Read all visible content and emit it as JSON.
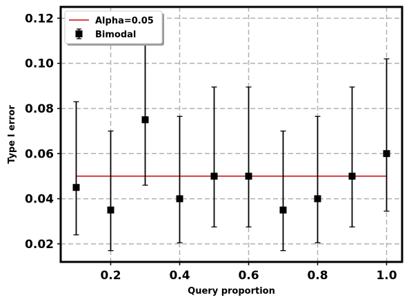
{
  "chart_data": {
    "type": "scatter",
    "title": "",
    "xlabel": "Query proportion",
    "ylabel": "Type I error",
    "xlim": [
      0.055,
      1.045
    ],
    "ylim": [
      0.012,
      0.125
    ],
    "xticks": [
      0.2,
      0.4,
      0.6,
      0.8,
      1.0
    ],
    "xtick_labels": [
      "0.2",
      "0.4",
      "0.6",
      "0.8",
      "1.0"
    ],
    "yticks": [
      0.02,
      0.04,
      0.06,
      0.08,
      0.1,
      0.12
    ],
    "ytick_labels": [
      "0.02",
      "0.04",
      "0.06",
      "0.08",
      "0.10",
      "0.12"
    ],
    "grid": true,
    "legend_position": "top-left",
    "series": [
      {
        "name": "Bimodal",
        "kind": "errorbar",
        "color": "#000000",
        "marker": "square",
        "x": [
          0.1,
          0.2,
          0.3,
          0.4,
          0.5,
          0.6,
          0.7,
          0.8,
          0.9,
          1.0
        ],
        "y": [
          0.045,
          0.035,
          0.075,
          0.04,
          0.05,
          0.05,
          0.035,
          0.04,
          0.05,
          0.06
        ],
        "err_low": [
          0.024,
          0.017,
          0.046,
          0.0205,
          0.0275,
          0.0275,
          0.017,
          0.0205,
          0.0275,
          0.0345
        ],
        "err_high": [
          0.083,
          0.07,
          0.115,
          0.0765,
          0.0895,
          0.0895,
          0.07,
          0.0765,
          0.0895,
          0.102
        ]
      },
      {
        "name": "Alpha=0.05",
        "kind": "line",
        "color": "#d62728",
        "x": [
          0.1,
          1.0
        ],
        "y": [
          0.05,
          0.05
        ]
      }
    ],
    "legend": [
      {
        "label": "Alpha=0.05",
        "kind": "line",
        "color": "#d62728"
      },
      {
        "label": "Bimodal",
        "kind": "errorbar",
        "color": "#000000"
      }
    ]
  }
}
